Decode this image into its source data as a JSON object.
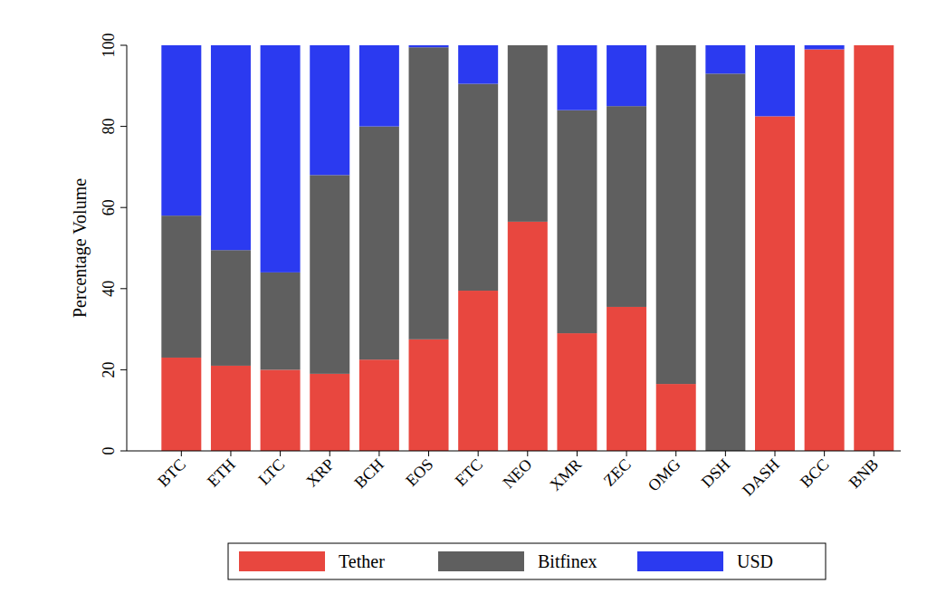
{
  "chart_data": {
    "type": "bar",
    "stacked": true,
    "legend": "bottom",
    "grid": false,
    "y_label": "Percentage Volume",
    "categories": [
      "BTC",
      "ETH",
      "LTC",
      "XRP",
      "BCH",
      "EOS",
      "ETC",
      "NEO",
      "XMR",
      "ZEC",
      "OMG",
      "DSH",
      "DASH",
      "BCC",
      "BNB"
    ],
    "series": [
      {
        "name": "Tether",
        "color": "#e8473f",
        "values": [
          23,
          21,
          20,
          19,
          22.5,
          27.5,
          39.5,
          56.5,
          29,
          35.5,
          16.5,
          0,
          82.5,
          99,
          100
        ]
      },
      {
        "name": "Bitfinex",
        "color": "#5f5f5f",
        "values": [
          35,
          28.5,
          24,
          49,
          57.5,
          72,
          51,
          43.5,
          55,
          49.5,
          83.5,
          93,
          0,
          0,
          0
        ]
      },
      {
        "name": "USD",
        "color": "#2b3af0",
        "values": [
          42,
          50.5,
          56,
          32,
          20,
          0.5,
          9.5,
          0,
          16,
          15,
          0,
          7,
          17.5,
          1,
          0
        ]
      }
    ],
    "ylim": [
      0,
      100
    ],
    "yticks": [
      0,
      20,
      40,
      60,
      80,
      100
    ]
  }
}
